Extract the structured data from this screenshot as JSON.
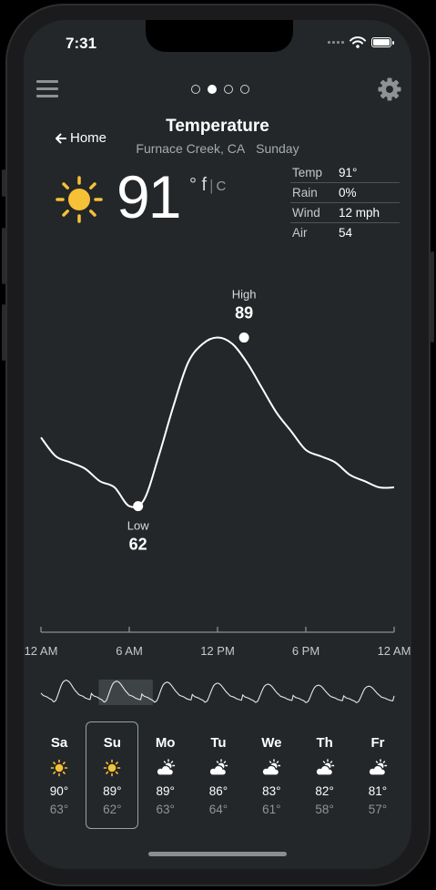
{
  "status": {
    "time": "7:31"
  },
  "header": {
    "home_label": "Home",
    "title": "Temperature",
    "location": "Furnace Creek, CA",
    "day": "Sunday",
    "page_count": 4,
    "active_page": 1
  },
  "current": {
    "temp": "91",
    "unit_f": "° f",
    "unit_sep": "|",
    "unit_c": "C",
    "stats": [
      {
        "label": "Temp",
        "value": "91°"
      },
      {
        "label": "Rain",
        "value": "0%"
      },
      {
        "label": "Wind",
        "value": "12 mph"
      },
      {
        "label": "Air",
        "value": "54"
      }
    ]
  },
  "chart_data": {
    "type": "line",
    "title": "",
    "xlabel": "",
    "ylabel": "",
    "x_ticks": [
      "12 AM",
      "6 AM",
      "12 PM",
      "6 PM",
      "12 AM"
    ],
    "x": [
      0,
      1,
      2,
      3,
      4,
      5,
      6,
      7,
      8,
      9,
      10,
      11,
      12,
      13,
      14,
      15,
      16,
      17,
      18,
      19,
      20,
      21,
      22,
      23,
      24
    ],
    "y": [
      73,
      70,
      69,
      68,
      66,
      65,
      62,
      63,
      70,
      78,
      85,
      88,
      89,
      88,
      85,
      81,
      77,
      74,
      71,
      70,
      69,
      67,
      66,
      65,
      65
    ],
    "high": {
      "label": "High",
      "value": "89",
      "hour": 13.8
    },
    "low": {
      "label": "Low",
      "value": "62",
      "hour": 6.6
    },
    "ylim": [
      58,
      92
    ],
    "colors": {
      "line": "#ffffff",
      "axis": "#8a8e91"
    }
  },
  "week": {
    "selected_index": 1,
    "days": [
      {
        "name": "Sa",
        "icon": "sun-icon",
        "high": "90°",
        "low": "63°"
      },
      {
        "name": "Su",
        "icon": "sun-icon",
        "high": "89°",
        "low": "62°"
      },
      {
        "name": "Mo",
        "icon": "partly-cloudy-icon",
        "high": "89°",
        "low": "63°"
      },
      {
        "name": "Tu",
        "icon": "partly-cloudy-icon",
        "high": "86°",
        "low": "64°"
      },
      {
        "name": "We",
        "icon": "partly-cloudy-icon",
        "high": "83°",
        "low": "61°"
      },
      {
        "name": "Th",
        "icon": "partly-cloudy-icon",
        "high": "82°",
        "low": "58°"
      },
      {
        "name": "Fr",
        "icon": "partly-cloudy-icon",
        "high": "81°",
        "low": "57°"
      }
    ]
  },
  "colors": {
    "background": "#232729",
    "sun": "#f7c137",
    "muted_text": "#a6abae"
  }
}
